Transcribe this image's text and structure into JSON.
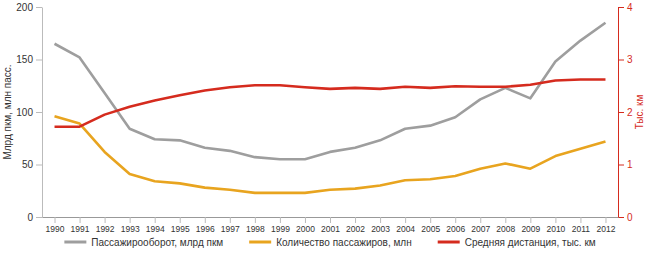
{
  "chart_data": {
    "type": "line",
    "ylabel": "Млрд пкм, млн пасс.",
    "y2label": "Тыс. км",
    "categories": [
      "1990",
      "1991",
      "1992",
      "1993",
      "1994",
      "1995",
      "1996",
      "1997",
      "1998",
      "1999",
      "2000",
      "2001",
      "2002",
      "2003",
      "2004",
      "2005",
      "2006",
      "2007",
      "2008",
      "2009",
      "2010",
      "2011",
      "2012"
    ],
    "series": [
      {
        "name": "Пассажирооборот, млрд пкм",
        "color": "#9e9e9e",
        "values": [
          165,
          152,
          118,
          84,
          74,
          73,
          66,
          63,
          57,
          55,
          55,
          62,
          66,
          73,
          84,
          87,
          95,
          112,
          123,
          113,
          148,
          168,
          185
        ]
      },
      {
        "name": "Количество пассажиров, млн",
        "color": "#e8a41f",
        "values": [
          96,
          89,
          62,
          41,
          34,
          32,
          28,
          26,
          23,
          23,
          23,
          26,
          27,
          30,
          35,
          36,
          39,
          46,
          51,
          46,
          58,
          65,
          72
        ]
      },
      {
        "name": "Средняя дистанция, тыс. км",
        "color": "#d52b1e",
        "axis": "y2",
        "values": [
          1.72,
          1.72,
          1.95,
          2.1,
          2.22,
          2.32,
          2.41,
          2.47,
          2.51,
          2.51,
          2.47,
          2.44,
          2.46,
          2.44,
          2.48,
          2.46,
          2.49,
          2.48,
          2.48,
          2.52,
          2.6,
          2.62,
          2.62
        ]
      }
    ],
    "ylim": [
      0,
      200
    ],
    "yticks": [
      0,
      50,
      100,
      150,
      200
    ],
    "y2lim": [
      0,
      4
    ],
    "y2ticks": [
      0,
      1,
      2,
      3,
      4
    ],
    "legend": "bottom"
  }
}
